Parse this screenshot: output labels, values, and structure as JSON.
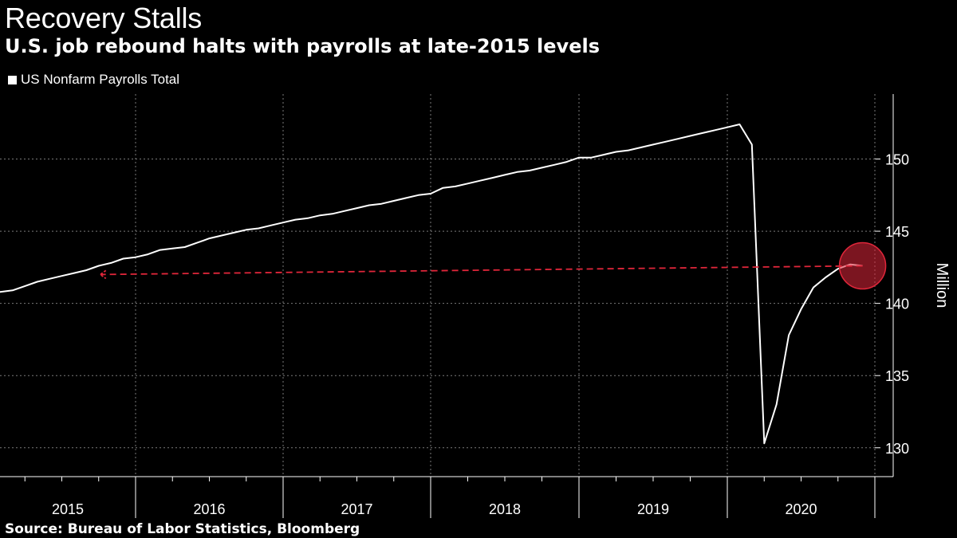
{
  "header": {
    "title": "Recovery Stalls",
    "subtitle": "U.S. job rebound halts with payrolls at late-2015 levels"
  },
  "footer": {
    "source": "Source: Bureau of Labor Statistics, Bloomberg"
  },
  "colors": {
    "background": "#000000",
    "line": "#ffffff",
    "annotation": "#e0263a",
    "grid": "#7a7a7a"
  },
  "chart_data": {
    "type": "line",
    "title": "Recovery Stalls",
    "subtitle": "U.S. job rebound halts with payrolls at late-2015 levels",
    "ylabel": "Million",
    "xlabel": "",
    "x_start": "2015-01",
    "x_end": "2020-12",
    "ylim": [
      128,
      154.5
    ],
    "yticks": [
      130,
      135,
      140,
      145,
      150
    ],
    "xtick_labels": [
      "2015",
      "2016",
      "2017",
      "2018",
      "2019",
      "2020"
    ],
    "grid": true,
    "legend_position": "top-left",
    "series": [
      {
        "name": "US Nonfarm Payrolls Total",
        "x": [
          "2015-01",
          "2015-02",
          "2015-03",
          "2015-04",
          "2015-05",
          "2015-06",
          "2015-07",
          "2015-08",
          "2015-09",
          "2015-10",
          "2015-11",
          "2015-12",
          "2016-01",
          "2016-02",
          "2016-03",
          "2016-04",
          "2016-05",
          "2016-06",
          "2016-07",
          "2016-08",
          "2016-09",
          "2016-10",
          "2016-11",
          "2016-12",
          "2017-01",
          "2017-02",
          "2017-03",
          "2017-04",
          "2017-05",
          "2017-06",
          "2017-07",
          "2017-08",
          "2017-09",
          "2017-10",
          "2017-11",
          "2017-12",
          "2018-01",
          "2018-02",
          "2018-03",
          "2018-04",
          "2018-05",
          "2018-06",
          "2018-07",
          "2018-08",
          "2018-09",
          "2018-10",
          "2018-11",
          "2018-12",
          "2019-01",
          "2019-02",
          "2019-03",
          "2019-04",
          "2019-05",
          "2019-06",
          "2019-07",
          "2019-08",
          "2019-09",
          "2019-10",
          "2019-11",
          "2019-12",
          "2020-01",
          "2020-02",
          "2020-03",
          "2020-04",
          "2020-05",
          "2020-06",
          "2020-07",
          "2020-08",
          "2020-09",
          "2020-10",
          "2020-11",
          "2020-12"
        ],
        "values": [
          140.5,
          140.8,
          140.9,
          141.2,
          141.5,
          141.7,
          141.9,
          142.1,
          142.3,
          142.6,
          142.8,
          143.1,
          143.2,
          143.4,
          143.7,
          143.8,
          143.9,
          144.2,
          144.5,
          144.7,
          144.9,
          145.1,
          145.2,
          145.4,
          145.6,
          145.8,
          145.9,
          146.1,
          146.2,
          146.4,
          146.6,
          146.8,
          146.9,
          147.1,
          147.3,
          147.5,
          147.6,
          148.0,
          148.1,
          148.3,
          148.5,
          148.7,
          148.9,
          149.1,
          149.2,
          149.4,
          149.6,
          149.8,
          150.1,
          150.1,
          150.3,
          150.5,
          150.6,
          150.8,
          151.0,
          151.2,
          151.4,
          151.6,
          151.8,
          152.0,
          152.2,
          152.4,
          151.0,
          130.3,
          133.0,
          137.8,
          139.6,
          141.1,
          141.8,
          142.4,
          142.7,
          142.6
        ]
      }
    ],
    "annotation": {
      "type": "dashed-arrow",
      "from": {
        "x": "2020-12",
        "y": 142.6
      },
      "to": {
        "x": "2015-10",
        "y": 142.0
      }
    }
  }
}
